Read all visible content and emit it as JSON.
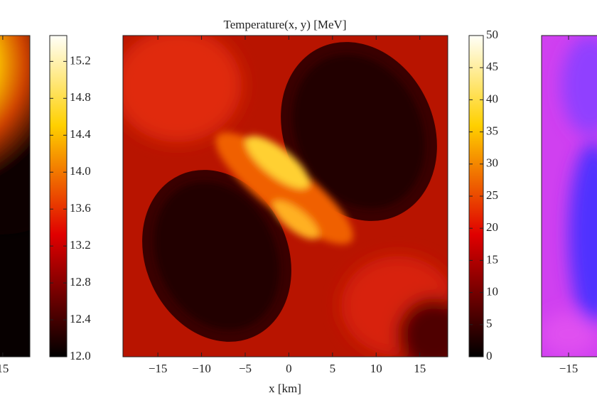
{
  "chart_data": [
    {
      "type": "heatmap",
      "xlim": [
        -18.1,
        18.1
      ],
      "xticks": [
        15
      ],
      "colorbar": {
        "clim": [
          12.0,
          15.48
        ],
        "ticks": [
          {
            "value": 12,
            "label": "12.0"
          },
          12.4,
          12.8,
          13.2,
          13.6,
          {
            "value": 14,
            "label": "14.0"
          },
          14.4,
          14.8,
          15.2
        ]
      }
    },
    {
      "type": "heatmap",
      "title": "Temperature(x, y) [MeV]",
      "xlabel": "x [km]",
      "xlim": [
        -19,
        18.2
      ],
      "xticks": [
        {
          "value": -15,
          "label": "−15"
        },
        {
          "value": -10,
          "label": "−10"
        },
        {
          "value": -5,
          "label": "−5"
        },
        0,
        5,
        10,
        15
      ],
      "colorbar": {
        "clim": [
          0,
          50
        ],
        "ticks": [
          0,
          5,
          10,
          15,
          20,
          25,
          30,
          35,
          40,
          45,
          50
        ]
      }
    },
    {
      "type": "heatmap",
      "xlim": [
        -18.1,
        18.2
      ],
      "xticks": [
        {
          "value": -15,
          "label": "−15"
        }
      ]
    }
  ]
}
